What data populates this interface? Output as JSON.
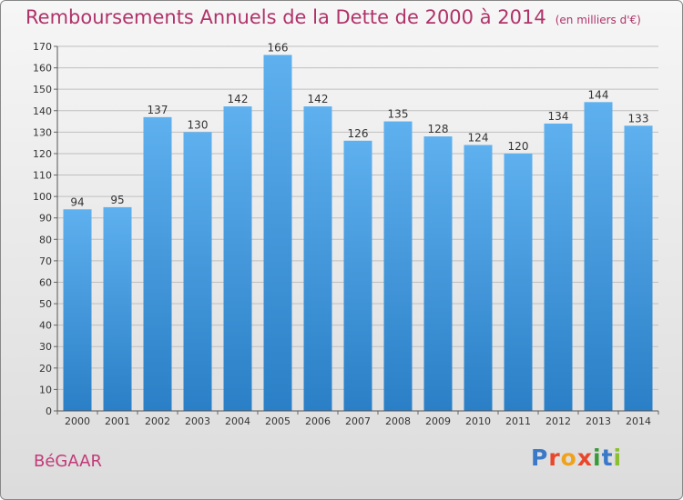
{
  "title": "Remboursements Annuels de la Dette de 2000 à 2014",
  "unit": "(en milliers d'€)",
  "city": "BéGAAR",
  "logo": {
    "text": "Proxiti",
    "letters": [
      {
        "ch": "P",
        "color": "#3a78c8"
      },
      {
        "ch": "r",
        "color": "#e8472b"
      },
      {
        "ch": "o",
        "color": "#f0a21a"
      },
      {
        "ch": "x",
        "color": "#e8472b"
      },
      {
        "ch": "i",
        "color": "#3a9a3a"
      },
      {
        "ch": "t",
        "color": "#3a78c8"
      },
      {
        "ch": "i",
        "color": "#8bbf2f"
      }
    ]
  },
  "colors": {
    "title": "#b0336a",
    "bar_top": "#5eb0ee",
    "bar_bottom": "#2a7fc6",
    "grid": "#bfbfbf"
  },
  "chart_data": {
    "type": "bar",
    "categories": [
      "2000",
      "2001",
      "2002",
      "2003",
      "2004",
      "2005",
      "2006",
      "2007",
      "2008",
      "2009",
      "2010",
      "2011",
      "2012",
      "2013",
      "2014"
    ],
    "values": [
      94,
      95,
      137,
      130,
      142,
      166,
      142,
      126,
      135,
      128,
      124,
      120,
      134,
      144,
      133
    ],
    "ylim": [
      0,
      170
    ],
    "yticks": [
      0,
      10,
      20,
      30,
      40,
      50,
      60,
      70,
      80,
      90,
      100,
      110,
      120,
      130,
      140,
      150,
      160,
      170
    ],
    "grid": true,
    "data_labels": true
  }
}
